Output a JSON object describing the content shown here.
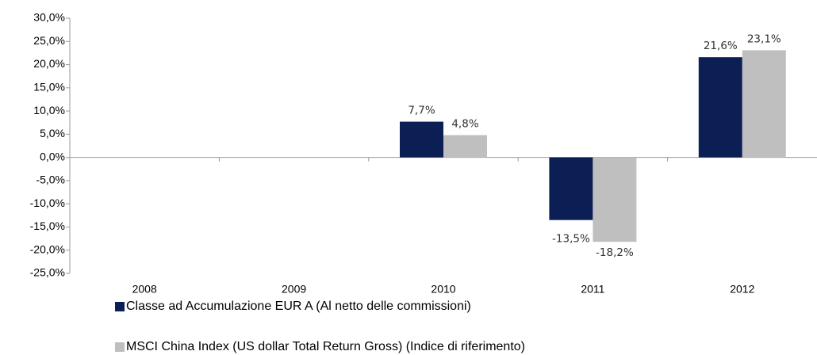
{
  "chart_data": {
    "type": "bar",
    "categories": [
      "2008",
      "2009",
      "2010",
      "2011",
      "2012"
    ],
    "series": [
      {
        "name": "Classe ad Accumulazione EUR A (Al netto delle commissioni)",
        "color": "#0b1f55",
        "values": [
          null,
          null,
          7.7,
          -13.5,
          21.6
        ],
        "value_labels": [
          null,
          null,
          "7,7%",
          "-13,5%",
          "21,6%"
        ]
      },
      {
        "name": "MSCI China Index (US dollar Total Return Gross) (Indice di riferimento)",
        "color": "#bfbfbf",
        "values": [
          null,
          null,
          4.8,
          -18.2,
          23.1
        ],
        "value_labels": [
          null,
          null,
          "4,8%",
          "-18,2%",
          "23,1%"
        ]
      }
    ],
    "ylim": [
      -25,
      30
    ],
    "yticks": [
      {
        "value": -25,
        "label": "-25,0%"
      },
      {
        "value": -20,
        "label": "-20,0%"
      },
      {
        "value": -15,
        "label": "-15,0%"
      },
      {
        "value": -10,
        "label": "-10,0%"
      },
      {
        "value": -5,
        "label": "-5,0%"
      },
      {
        "value": 0,
        "label": "0,0%"
      },
      {
        "value": 5,
        "label": "5,0%"
      },
      {
        "value": 10,
        "label": "10,0%"
      },
      {
        "value": 15,
        "label": "15,0%"
      },
      {
        "value": 20,
        "label": "20,0%"
      },
      {
        "value": 25,
        "label": "25,0%"
      },
      {
        "value": 30,
        "label": "30,0%"
      }
    ],
    "grid": false
  }
}
